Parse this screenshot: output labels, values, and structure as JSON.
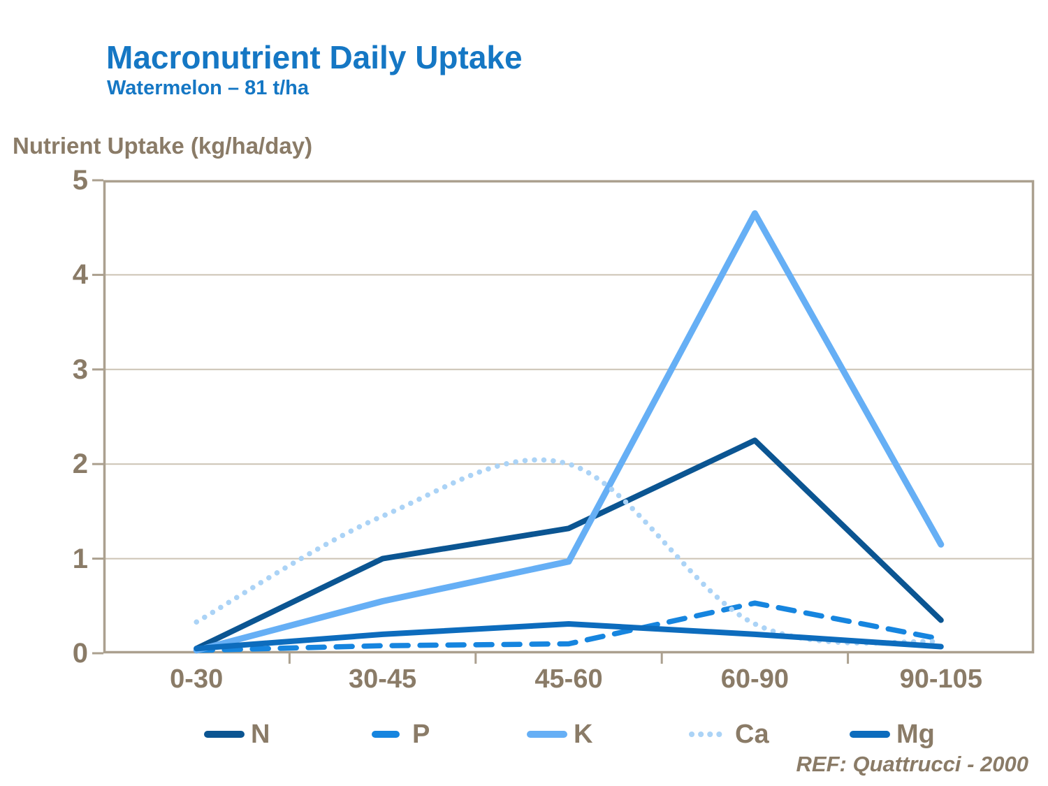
{
  "title": "Macronutrient Daily Uptake",
  "subtitle": "Watermelon – 81 t/ha",
  "axis_title": "Nutrient Uptake (kg/ha/day)",
  "ref": "REF: Quattrucci - 2000",
  "colors": {
    "title_blue": "#1577C4",
    "text_brown": "#8A7B67",
    "frame": "#ABA08F",
    "grid": "#CCC3B4",
    "n": "#0B5592",
    "p": "#1685DF",
    "k": "#66AFF5",
    "ca": "#ABD3F6",
    "mg": "#0D6CBD"
  },
  "chart_data": {
    "type": "line",
    "title": "Macronutrient Daily Uptake",
    "subtitle": "Watermelon – 81 t/ha",
    "xlabel": "",
    "ylabel": "Nutrient Uptake (kg/ha/day)",
    "categories": [
      "0-30",
      "30-45",
      "45-60",
      "60-90",
      "90-105"
    ],
    "yticks": [
      0,
      1,
      2,
      3,
      4,
      5
    ],
    "ylim": [
      0,
      5
    ],
    "grid": true,
    "legend_position": "bottom",
    "series": [
      {
        "name": "N",
        "style": "solid",
        "smoothed": false,
        "color_key": "n",
        "values": [
          0.05,
          1.0,
          1.32,
          2.25,
          0.35
        ]
      },
      {
        "name": "P",
        "style": "dashed",
        "smoothed": false,
        "color_key": "p",
        "values": [
          0.03,
          0.08,
          0.1,
          0.53,
          0.15
        ]
      },
      {
        "name": "K",
        "style": "solid",
        "smoothed": false,
        "color_key": "k",
        "values": [
          0.03,
          0.55,
          0.97,
          4.65,
          1.15
        ]
      },
      {
        "name": "Ca",
        "style": "dotted",
        "smoothed": true,
        "color_key": "ca",
        "values": [
          0.33,
          1.45,
          2.0,
          0.31,
          0.12
        ]
      },
      {
        "name": "Mg",
        "style": "solid",
        "smoothed": false,
        "color_key": "mg",
        "values": [
          0.05,
          0.2,
          0.31,
          0.2,
          0.07
        ]
      }
    ]
  }
}
